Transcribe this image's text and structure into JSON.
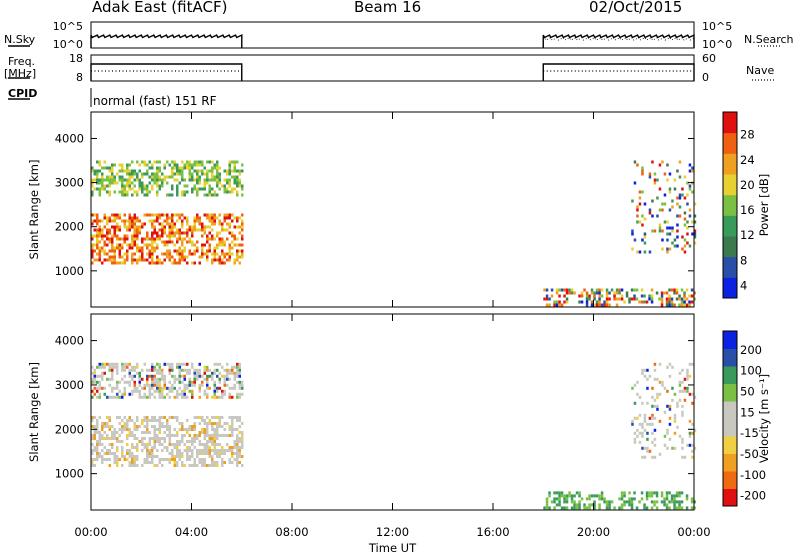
{
  "header": {
    "station": "Adak East (fitACF)",
    "beam": "Beam 16",
    "date": "02/Oct/2015"
  },
  "side_labels": {
    "nsky": "N.Sky",
    "nsearch": "N.Search",
    "freq_line1": "Freq.",
    "freq_line2": "[MHz]",
    "nave": "Nave",
    "cpid": "CPID",
    "cpid_value": "normal (fast) 151 RF"
  },
  "colors": {
    "power_scale": [
      "#0b22e0",
      "#2a4fa8",
      "#3b7a4f",
      "#3a9a5a",
      "#7ac143",
      "#e8d030",
      "#f0a020",
      "#f06010",
      "#e01010"
    ],
    "velocity_scale": [
      "#e01010",
      "#f06a10",
      "#f0a020",
      "#f0d040",
      "#c8c8c0",
      "#c8c8c0",
      "#7ac143",
      "#3a9a5a",
      "#2a4fa8",
      "#0b22e0"
    ]
  },
  "chart_data": [
    {
      "type": "line",
      "panel": "noise",
      "y_left_ticks": [
        "10^5",
        "10^0"
      ],
      "y_right_ticks": [
        "10^5",
        "10^0"
      ],
      "series": [
        {
          "name": "N.Sky",
          "segments": [
            [
              0.0,
              6.0
            ],
            [
              18.0,
              24.0
            ]
          ],
          "level": 0.45
        },
        {
          "name": "N.Search",
          "segments": [
            [
              18.0,
              24.0
            ]
          ],
          "level": 0.35
        }
      ]
    },
    {
      "type": "line",
      "panel": "frequency",
      "y_left_ticks": [
        "18",
        "8"
      ],
      "y_right_ticks": [
        "60",
        "0"
      ],
      "series": [
        {
          "name": "Freq.",
          "segments": [
            [
              0.0,
              6.0
            ],
            [
              18.0,
              24.0
            ]
          ],
          "value": 10.5
        },
        {
          "name": "Nave",
          "segments": [
            [
              0.0,
              6.0
            ],
            [
              18.0,
              24.0
            ]
          ],
          "value": 30
        }
      ]
    },
    {
      "type": "heatmap",
      "panel": "power",
      "ylabel": "Slant Range [km]",
      "yticks": [
        "4000",
        "3000",
        "2000",
        "1000"
      ],
      "ytick_values": [
        4000,
        3000,
        2000,
        1000
      ],
      "ylim": [
        180,
        4600
      ],
      "colorbar_label": "Power [dB]",
      "colorbar_ticks": [
        "28",
        "24",
        "20",
        "16",
        "12",
        "8",
        "4"
      ],
      "colorbar_range": [
        0,
        30
      ],
      "regions": [
        {
          "t": [
            0.0,
            6.0
          ],
          "range_km": [
            1200,
            2300
          ],
          "power_db": 26
        },
        {
          "t": [
            0.0,
            6.0
          ],
          "range_km": [
            2700,
            3500
          ],
          "power_db": 16
        },
        {
          "t": [
            18.0,
            24.0
          ],
          "range_km": [
            200,
            600
          ],
          "power_db": 10
        },
        {
          "t": [
            21.5,
            24.0
          ],
          "range_km": [
            1400,
            3500
          ],
          "power_db": 8
        }
      ]
    },
    {
      "type": "heatmap",
      "panel": "velocity",
      "ylabel": "Slant Range [km]",
      "yticks": [
        "4000",
        "3000",
        "2000",
        "1000"
      ],
      "ytick_values": [
        4000,
        3000,
        2000,
        1000
      ],
      "ylim": [
        180,
        4600
      ],
      "colorbar_label": "Velocity [m s⁻¹]",
      "colorbar_ticks": [
        "200",
        "100",
        "50",
        "15",
        "-15",
        "-50",
        "-100",
        "-200"
      ],
      "regions": [
        {
          "t": [
            0.0,
            6.0
          ],
          "range_km": [
            1200,
            2300
          ],
          "velocity": 0
        },
        {
          "t": [
            0.0,
            6.0
          ],
          "range_km": [
            2700,
            3500
          ],
          "velocity": -40
        },
        {
          "t": [
            18.0,
            24.0
          ],
          "range_km": [
            200,
            600
          ],
          "velocity": 40
        },
        {
          "t": [
            21.5,
            24.0
          ],
          "range_km": [
            1400,
            3500
          ],
          "velocity": 0
        }
      ]
    }
  ],
  "x_axis": {
    "label": "Time UT",
    "ticks": [
      "00:00",
      "04:00",
      "08:00",
      "12:00",
      "16:00",
      "20:00",
      "00:00"
    ],
    "tick_hours": [
      0,
      4,
      8,
      12,
      16,
      20,
      24
    ],
    "xlim": [
      0,
      24
    ]
  }
}
